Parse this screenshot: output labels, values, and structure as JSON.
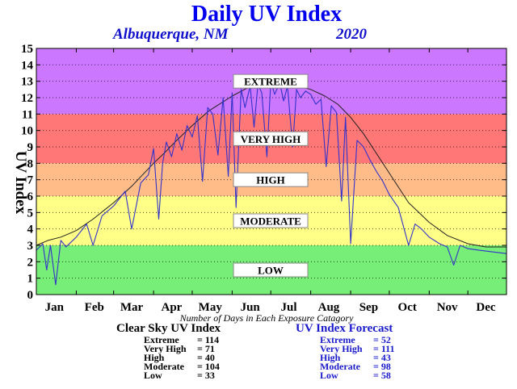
{
  "title": "Daily UV Index",
  "location": "Albuquerque, NM",
  "year": "2020",
  "footnote": "Number of Days in Each Exposure Catagory",
  "colors": {
    "extreme": "#cc77ff",
    "very_high": "#ff7777",
    "high": "#ffbb88",
    "moderate": "#ffff88",
    "low": "#77ee77",
    "clear_sky_line": "#222222",
    "forecast_line": "#3333cc"
  },
  "chart_data": {
    "type": "line",
    "xlabel": "",
    "ylabel": "UV Index",
    "ylim": [
      0,
      15
    ],
    "xlim": [
      1,
      366
    ],
    "grid": "horizontal dotted",
    "y_ticks": [
      "0",
      "1",
      "2",
      "3",
      "4",
      "5",
      "6",
      "7",
      "8",
      "9",
      "10",
      "11",
      "12",
      "13",
      "14",
      "15"
    ],
    "month_ticks": [
      {
        "label": "Jan",
        "day": 1
      },
      {
        "label": "Feb",
        "day": 32
      },
      {
        "label": "Mar",
        "day": 61
      },
      {
        "label": "Apr",
        "day": 92
      },
      {
        "label": "May",
        "day": 122
      },
      {
        "label": "Jun",
        "day": 153
      },
      {
        "label": "Jul",
        "day": 183
      },
      {
        "label": "Aug",
        "day": 214
      },
      {
        "label": "Sep",
        "day": 245
      },
      {
        "label": "Oct",
        "day": 275
      },
      {
        "label": "Nov",
        "day": 306
      },
      {
        "label": "Dec",
        "day": 336
      }
    ],
    "bands": [
      {
        "name": "LOW",
        "from": 0,
        "to": 3,
        "color": "#77ee77"
      },
      {
        "name": "MODERATE",
        "from": 3,
        "to": 6,
        "color": "#ffff88"
      },
      {
        "name": "HIGH",
        "from": 6,
        "to": 8,
        "color": "#ffbb88"
      },
      {
        "name": "VERY HIGH",
        "from": 8,
        "to": 11,
        "color": "#ff7777"
      },
      {
        "name": "EXTREME",
        "from": 11,
        "to": 15,
        "color": "#cc77ff"
      }
    ],
    "series": [
      {
        "name": "Clear Sky UV Index",
        "color": "#222222",
        "x": [
          1,
          10,
          20,
          32,
          45,
          61,
          75,
          92,
          100,
          110,
          122,
          135,
          153,
          165,
          172,
          183,
          195,
          205,
          214,
          225,
          235,
          245,
          255,
          265,
          275,
          290,
          306,
          320,
          336,
          350,
          366
        ],
        "y": [
          3.0,
          3.3,
          3.5,
          3.9,
          4.6,
          5.6,
          6.6,
          8.0,
          8.6,
          9.4,
          10.3,
          11.2,
          12.1,
          12.6,
          12.8,
          12.9,
          12.8,
          12.7,
          12.5,
          12.1,
          11.6,
          10.8,
          9.8,
          8.6,
          7.4,
          5.6,
          4.4,
          3.6,
          3.1,
          2.9,
          2.9
        ]
      },
      {
        "name": "UV Index Forecast",
        "color": "#3333cc",
        "x": [
          1,
          6,
          9,
          12,
          16,
          20,
          24,
          32,
          40,
          45,
          52,
          61,
          70,
          75,
          82,
          88,
          92,
          96,
          99,
          102,
          106,
          110,
          114,
          118,
          122,
          126,
          130,
          134,
          138,
          142,
          146,
          150,
          153,
          156,
          160,
          163,
          167,
          170,
          173,
          176,
          180,
          183,
          186,
          190,
          193,
          196,
          200,
          203,
          206,
          210,
          214,
          218,
          222,
          226,
          230,
          234,
          238,
          241,
          245,
          250,
          255,
          260,
          265,
          270,
          275,
          282,
          290,
          295,
          300,
          306,
          314,
          320,
          325,
          330,
          336,
          345,
          355,
          366
        ],
        "y": [
          2.7,
          3.1,
          1.5,
          3.0,
          0.6,
          3.3,
          2.9,
          3.5,
          4.3,
          3.0,
          4.8,
          5.4,
          6.3,
          4.0,
          6.8,
          7.3,
          8.9,
          4.6,
          8.0,
          9.3,
          8.4,
          9.8,
          8.8,
          10.3,
          9.6,
          10.9,
          6.9,
          11.4,
          11.0,
          8.5,
          12.0,
          7.2,
          12.3,
          5.3,
          12.5,
          11.4,
          12.7,
          10.2,
          12.8,
          12.3,
          8.4,
          13.0,
          12.2,
          12.9,
          11.8,
          12.7,
          9.0,
          12.5,
          12.0,
          12.4,
          12.2,
          11.6,
          11.9,
          7.8,
          11.5,
          11.1,
          5.7,
          10.8,
          3.1,
          9.4,
          9.0,
          8.2,
          7.5,
          6.9,
          6.1,
          5.3,
          3.0,
          4.3,
          4.0,
          3.5,
          3.1,
          2.9,
          1.8,
          3.0,
          2.8,
          2.7,
          2.6,
          2.5
        ]
      }
    ]
  },
  "stats": {
    "clear_sky": {
      "title": "Clear Sky UV Index",
      "rows": [
        {
          "label": "Extreme",
          "value": "= 114"
        },
        {
          "label": "Very High",
          "value": "= 71"
        },
        {
          "label": "High",
          "value": "= 40"
        },
        {
          "label": "Moderate",
          "value": "= 104"
        },
        {
          "label": "Low",
          "value": "= 33"
        }
      ]
    },
    "forecast": {
      "title": "UV Index Forecast",
      "rows": [
        {
          "label": "Extreme",
          "value": "= 52"
        },
        {
          "label": "Very High",
          "value": "= 111"
        },
        {
          "label": "High",
          "value": "= 43"
        },
        {
          "label": "Moderate",
          "value": "= 98"
        },
        {
          "label": "Low",
          "value": "= 58"
        }
      ]
    }
  }
}
